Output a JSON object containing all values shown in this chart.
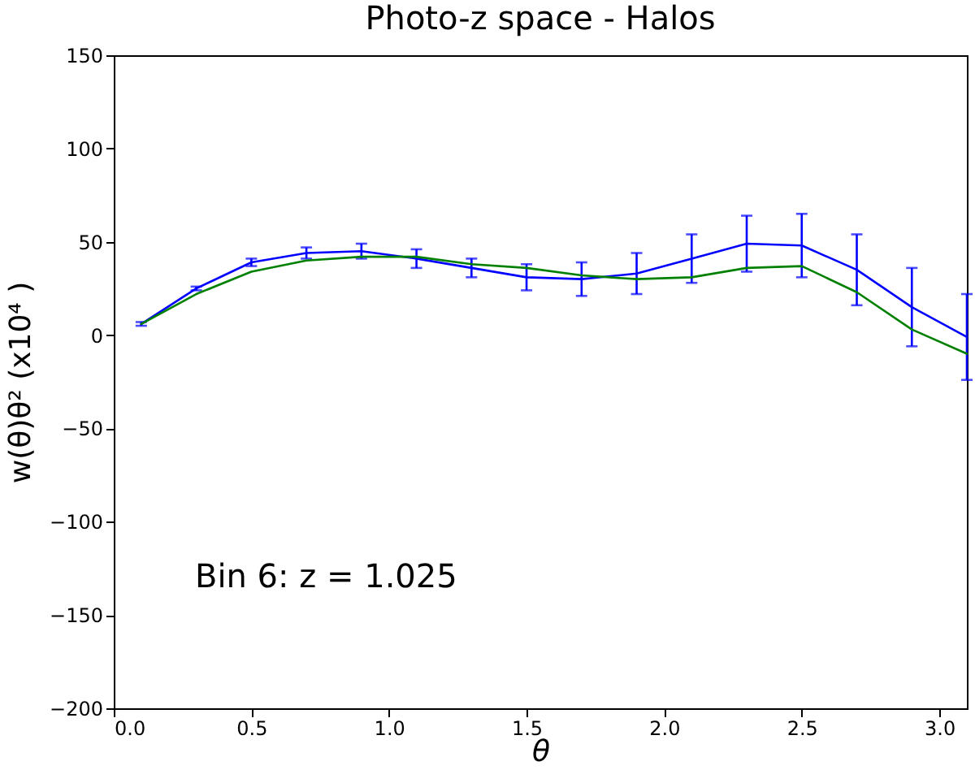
{
  "chart_data": {
    "type": "line",
    "title": "Photo-z space - Halos",
    "xlabel": "θ",
    "ylabel": "w(θ)θ² (x10⁴ )",
    "x": [
      0.1,
      0.3,
      0.5,
      0.7,
      0.9,
      1.1,
      1.3,
      1.5,
      1.7,
      1.9,
      2.1,
      2.3,
      2.5,
      2.7,
      2.9,
      3.1
    ],
    "series": [
      {
        "color": "#0000ff",
        "values": [
          6,
          25,
          39,
          44,
          45,
          41,
          36,
          31,
          30,
          33,
          41,
          49,
          48,
          35,
          15,
          -1
        ],
        "errors": [
          1,
          1,
          2,
          3,
          4,
          5,
          5,
          7,
          9,
          11,
          13,
          15,
          17,
          19,
          21,
          23
        ]
      },
      {
        "color": "#008000",
        "values": [
          6,
          22,
          34,
          40,
          42,
          42,
          38,
          36,
          32,
          30,
          31,
          36,
          37,
          23,
          3,
          -10
        ]
      }
    ],
    "xlim": [
      0,
      3.1
    ],
    "ylim": [
      -200,
      150
    ],
    "xticks": [
      {
        "value": 0,
        "label": "0.0"
      },
      0.5,
      {
        "value": 1,
        "label": "1.0"
      },
      1.5,
      {
        "value": 2,
        "label": "2.0"
      },
      2.5,
      {
        "value": 3,
        "label": "3.0"
      }
    ],
    "yticks": [
      -200,
      -150,
      -100,
      -50,
      0,
      50,
      100,
      150
    ],
    "annotations": [
      "Bin 6: z = 1.025"
    ],
    "grid": false,
    "marker": "none",
    "line_style": "solid"
  }
}
